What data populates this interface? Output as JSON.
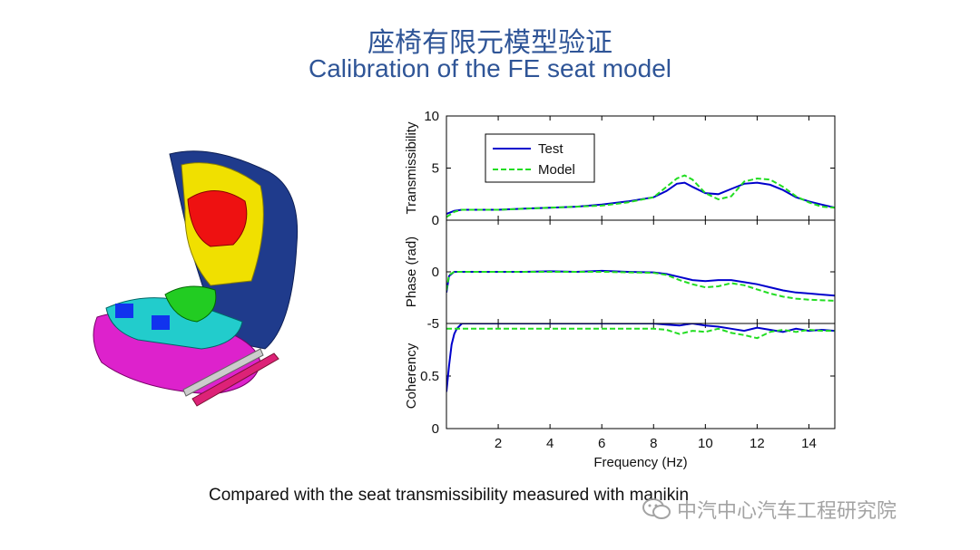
{
  "header": {
    "title_zh": "座椅有限元模型验证",
    "title_en": "Calibration of the FE seat model"
  },
  "caption": "Compared with the seat transmissibility measured with manikin",
  "watermark": {
    "text": "中汽中心汽车工程研究院",
    "icon": "wechat-icon"
  },
  "colors": {
    "title": "#2f5597",
    "test": "#0000cc",
    "model": "#22dd22",
    "seat_back": "#1f3b8c",
    "headrest": "#f0e000",
    "torso": "#ee1111",
    "hip": "#22cc22",
    "thigh": "#22cccc",
    "cushion": "#dd22cc",
    "rail": "#dd2277"
  },
  "chart_data": {
    "type": "line",
    "xlabel": "Frequency (Hz)",
    "xlim": [
      0,
      15
    ],
    "xticks": [
      2,
      4,
      6,
      8,
      10,
      12,
      14
    ],
    "legend": {
      "placement": "top-left",
      "entries": [
        "Test",
        "Model"
      ]
    },
    "panels": [
      {
        "ylabel": "Transmissibility",
        "ylim": [
          0,
          10
        ],
        "yticks": [
          0,
          5,
          10
        ],
        "series": [
          {
            "name": "Test",
            "style": "solid",
            "x": [
              0,
              0.3,
              0.6,
              1,
              2,
              3,
              4,
              5,
              6,
              7,
              8,
              8.5,
              8.9,
              9.2,
              9.5,
              10,
              10.5,
              11,
              11.5,
              12,
              12.5,
              13,
              13.5,
              14,
              14.5,
              15
            ],
            "y": [
              0.6,
              0.9,
              1.0,
              1.0,
              1.0,
              1.1,
              1.2,
              1.3,
              1.5,
              1.8,
              2.2,
              2.8,
              3.5,
              3.6,
              3.2,
              2.6,
              2.5,
              3.0,
              3.5,
              3.6,
              3.4,
              2.9,
              2.2,
              1.8,
              1.5,
              1.2
            ]
          },
          {
            "name": "Model",
            "style": "dashed",
            "x": [
              0,
              0.3,
              0.6,
              1,
              2,
              3,
              4,
              5,
              6,
              7,
              8,
              8.5,
              8.9,
              9.2,
              9.5,
              10,
              10.5,
              11,
              11.5,
              12,
              12.5,
              13,
              13.5,
              14,
              14.5,
              15
            ],
            "y": [
              0.3,
              0.8,
              1.0,
              1.0,
              1.0,
              1.1,
              1.2,
              1.3,
              1.4,
              1.7,
              2.2,
              3.2,
              4.0,
              4.3,
              3.9,
              2.6,
              2.0,
              2.3,
              3.7,
              4.0,
              3.9,
              3.2,
              2.3,
              1.7,
              1.3,
              1.2
            ]
          }
        ]
      },
      {
        "ylabel": "Phase (rad)",
        "ylim": [
          -5,
          5
        ],
        "yticks": [
          -5,
          0
        ],
        "series": [
          {
            "name": "Test",
            "style": "solid",
            "x": [
              0,
              0.1,
              0.3,
              1,
              2,
              3,
              4,
              5,
              6,
              7,
              8,
              8.5,
              9,
              9.5,
              10,
              10.5,
              11,
              11.5,
              12,
              12.5,
              13,
              13.5,
              14,
              14.5,
              15
            ],
            "y": [
              -2.0,
              -0.4,
              0.0,
              0.0,
              0.0,
              0.0,
              0.05,
              0.0,
              0.1,
              0.0,
              -0.05,
              -0.2,
              -0.5,
              -0.8,
              -0.9,
              -0.8,
              -0.8,
              -1.0,
              -1.2,
              -1.5,
              -1.8,
              -2.0,
              -2.1,
              -2.2,
              -2.3
            ]
          },
          {
            "name": "Model",
            "style": "dashed",
            "x": [
              0,
              0.1,
              0.3,
              1,
              2,
              3,
              4,
              5,
              6,
              7,
              8,
              8.5,
              9,
              9.5,
              10,
              10.5,
              11,
              11.5,
              12,
              12.5,
              13,
              13.5,
              14,
              14.5,
              15
            ],
            "y": [
              -1.8,
              -0.3,
              0.0,
              0.0,
              0.0,
              0.0,
              0.0,
              0.0,
              0.0,
              -0.05,
              -0.1,
              -0.3,
              -0.8,
              -1.2,
              -1.5,
              -1.4,
              -1.1,
              -1.3,
              -1.7,
              -2.1,
              -2.4,
              -2.6,
              -2.7,
              -2.75,
              -2.8
            ]
          }
        ]
      },
      {
        "ylabel": "Coherency",
        "ylim": [
          0,
          1
        ],
        "yticks": [
          0,
          0.5
        ],
        "series": [
          {
            "name": "Test",
            "style": "solid",
            "x": [
              0,
              0.1,
              0.2,
              0.3,
              0.4,
              0.6,
              1,
              2,
              4,
              6,
              8,
              8.5,
              9,
              9.5,
              10,
              10.5,
              11,
              11.5,
              12,
              12.5,
              13,
              13.5,
              14,
              14.5,
              15
            ],
            "y": [
              0.35,
              0.6,
              0.8,
              0.9,
              0.95,
              1.0,
              1.0,
              1.0,
              1.0,
              1.0,
              1.0,
              0.99,
              0.98,
              1.0,
              0.98,
              0.97,
              0.95,
              0.93,
              0.96,
              0.94,
              0.92,
              0.95,
              0.93,
              0.94,
              0.93
            ]
          },
          {
            "name": "Model",
            "style": "dashed",
            "x": [
              0,
              0.3,
              0.6,
              1,
              2,
              4,
              6,
              8,
              8.5,
              9,
              9.5,
              10,
              10.5,
              11,
              11.5,
              12,
              12.5,
              13,
              13.5,
              14,
              14.5,
              15
            ],
            "y": [
              0.95,
              0.95,
              0.95,
              0.95,
              0.95,
              0.95,
              0.95,
              0.95,
              0.94,
              0.9,
              0.93,
              0.92,
              0.95,
              0.91,
              0.89,
              0.86,
              0.92,
              0.94,
              0.92,
              0.94,
              0.93,
              0.93
            ]
          }
        ]
      }
    ]
  }
}
